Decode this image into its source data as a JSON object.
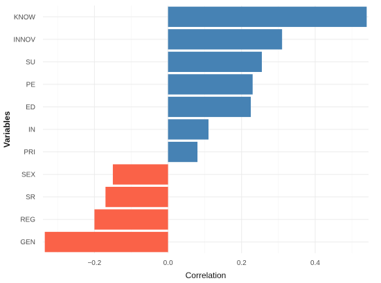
{
  "chart_data": {
    "type": "bar",
    "orientation": "horizontal",
    "title": "",
    "xlabel": "Correlation",
    "ylabel": "Variables",
    "categories": [
      "KNOW",
      "INNOV",
      "SU",
      "PE",
      "ED",
      "IN",
      "PRI",
      "SEX",
      "SR",
      "REG",
      "GEN"
    ],
    "values": [
      0.54,
      0.31,
      0.255,
      0.23,
      0.225,
      0.11,
      0.08,
      -0.15,
      -0.17,
      -0.2,
      -0.335
    ],
    "xlim": [
      -0.34,
      0.545
    ],
    "x_ticks": [
      -0.2,
      0.0,
      0.2,
      0.4
    ],
    "x_tick_labels": [
      "−0.2",
      "0.0",
      "0.2",
      "0.4"
    ],
    "grid": true,
    "legend": "none",
    "colors": {
      "positive": "#4682b4",
      "negative": "#fa6248",
      "grid_major": "#ebebeb",
      "grid_minor": "#f5f5f5"
    }
  }
}
